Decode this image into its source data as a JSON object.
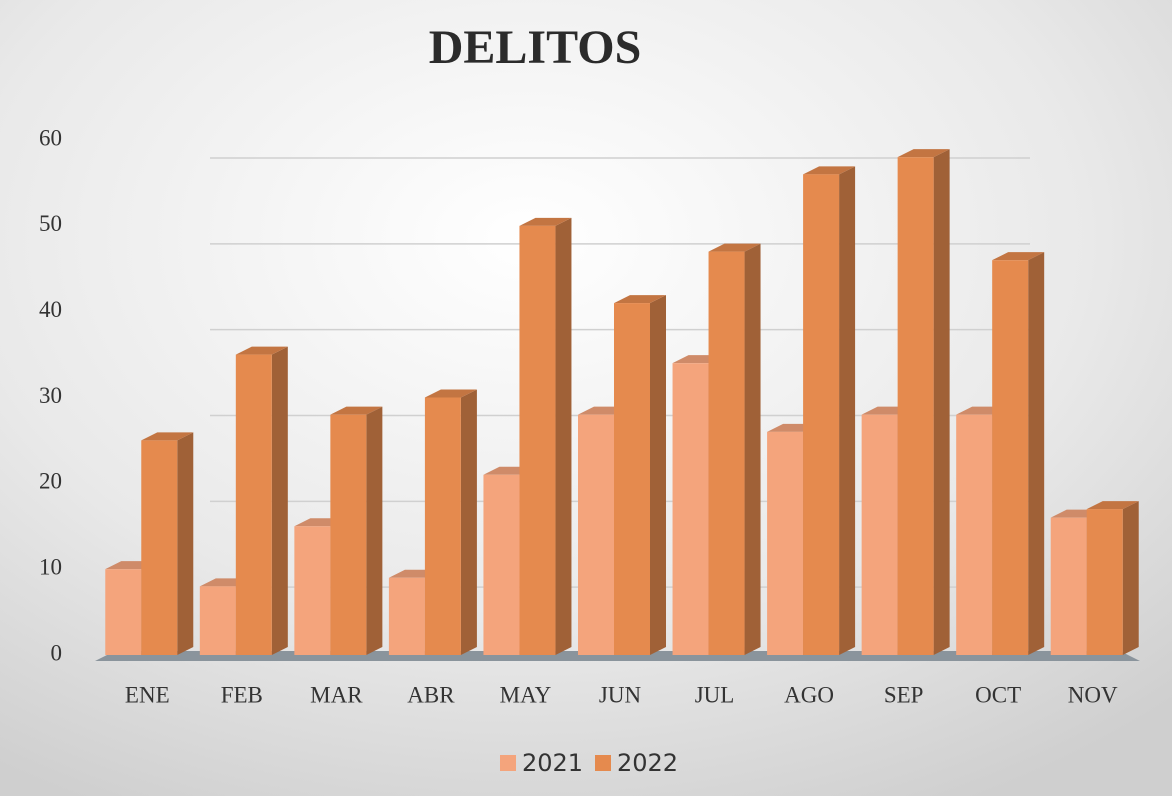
{
  "chart_data": {
    "type": "bar",
    "title": "DELITOS",
    "categories": [
      "ENE",
      "FEB",
      "MAR",
      "ABR",
      "MAY",
      "JUN",
      "JUL",
      "AGO",
      "SEP",
      "OCT",
      "NOV"
    ],
    "series": [
      {
        "name": "2021",
        "color": "#f4a47c",
        "values": [
          10,
          8,
          15,
          9,
          21,
          28,
          34,
          26,
          28,
          28,
          16
        ]
      },
      {
        "name": "2022",
        "color": "#e58a4e",
        "values": [
          25,
          35,
          28,
          30,
          50,
          41,
          47,
          56,
          58,
          46,
          17
        ]
      }
    ],
    "ylim": [
      0,
      60
    ],
    "yticks": [
      0,
      10,
      20,
      30,
      40,
      50,
      60
    ],
    "grid": true,
    "legend": "bottom"
  }
}
